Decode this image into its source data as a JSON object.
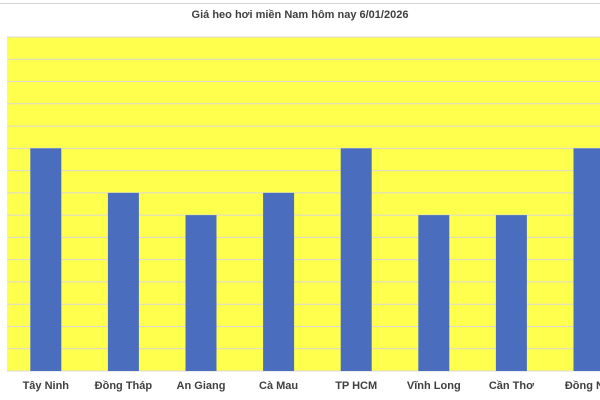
{
  "chart_data": {
    "type": "bar",
    "title": "Giá heo hơi miền Nam hôm nay 6/01/2026",
    "categories": [
      "Tây Ninh",
      "Đồng Tháp",
      "An Giang",
      "Cà Mau",
      "TP HCM",
      "Vĩnh Long",
      "Cần Thơ",
      "Đồng Nai"
    ],
    "values": [
      10,
      8,
      7,
      8,
      10,
      7,
      7,
      10
    ],
    "ylim": [
      0,
      15
    ],
    "grid": true,
    "colors": {
      "bar": "#4a6ebd",
      "plot_background": "#ffff4d",
      "grid": "#d9d9d9"
    }
  }
}
